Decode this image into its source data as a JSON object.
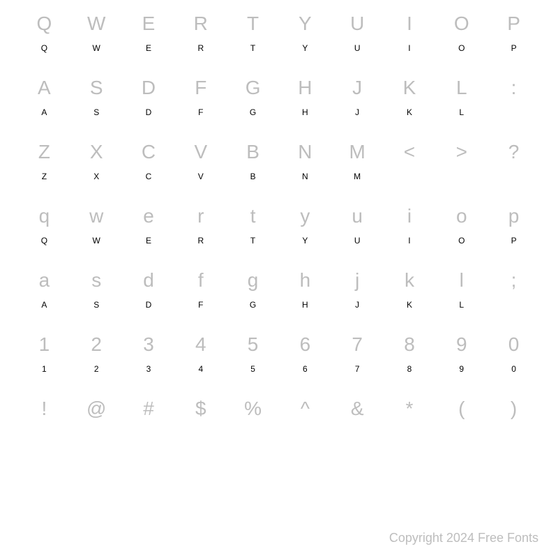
{
  "chart": {
    "columns": 10,
    "glyph_color": "#bdbdbd",
    "key_color": "#000000",
    "glyph_fontsize": 28,
    "key_fontsize": 12,
    "background_color": "#ffffff",
    "rows": [
      {
        "glyphs": [
          "Q",
          "W",
          "E",
          "R",
          "T",
          "Y",
          "U",
          "I",
          "O",
          "P"
        ],
        "keys": [
          "Q",
          "W",
          "E",
          "R",
          "T",
          "Y",
          "U",
          "I",
          "O",
          "P"
        ]
      },
      {
        "glyphs": [
          "A",
          "S",
          "D",
          "F",
          "G",
          "H",
          "J",
          "K",
          "L",
          ":"
        ],
        "keys": [
          "A",
          "S",
          "D",
          "F",
          "G",
          "H",
          "J",
          "K",
          "L",
          ""
        ]
      },
      {
        "glyphs": [
          "Z",
          "X",
          "C",
          "V",
          "B",
          "N",
          "M",
          "<",
          ">",
          "?"
        ],
        "keys": [
          "Z",
          "X",
          "C",
          "V",
          "B",
          "N",
          "M",
          "",
          "",
          ""
        ]
      },
      {
        "glyphs": [
          "q",
          "w",
          "e",
          "r",
          "t",
          "y",
          "u",
          "i",
          "o",
          "p"
        ],
        "keys": [
          "Q",
          "W",
          "E",
          "R",
          "T",
          "Y",
          "U",
          "I",
          "O",
          "P"
        ]
      },
      {
        "glyphs": [
          "a",
          "s",
          "d",
          "f",
          "g",
          "h",
          "j",
          "k",
          "l",
          ";"
        ],
        "keys": [
          "A",
          "S",
          "D",
          "F",
          "G",
          "H",
          "J",
          "K",
          "L",
          ""
        ]
      },
      {
        "glyphs": [
          "1",
          "2",
          "3",
          "4",
          "5",
          "6",
          "7",
          "8",
          "9",
          "0"
        ],
        "keys": [
          "1",
          "2",
          "3",
          "4",
          "5",
          "6",
          "7",
          "8",
          "9",
          "0"
        ]
      },
      {
        "glyphs": [
          "!",
          "@",
          "#",
          "$",
          "%",
          "^",
          "&",
          "*",
          "(",
          ")"
        ],
        "keys": [
          "",
          "",
          "",
          "",
          "",
          "",
          "",
          "",
          "",
          ""
        ]
      }
    ]
  },
  "footer": {
    "copyright": "Copyright 2024 Free Fonts"
  }
}
